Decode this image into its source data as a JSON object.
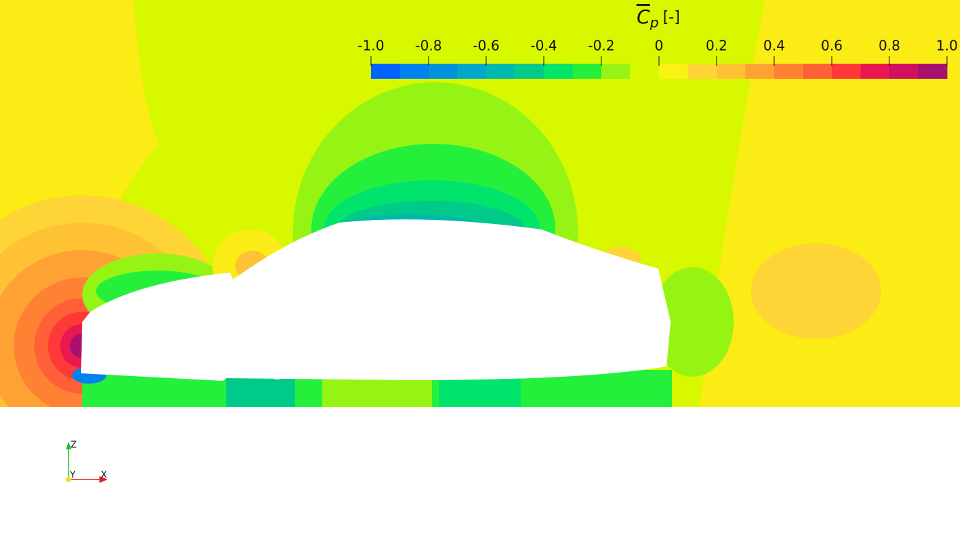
{
  "colorbar": {
    "symbol": "C",
    "subscript": "p",
    "unit": "[-]",
    "range": [
      -1,
      1
    ],
    "ticks": [
      {
        "value": -1,
        "label": "-1.0"
      },
      -0.8,
      -0.6,
      -0.4,
      -0.2,
      0,
      0.2,
      0.4,
      0.6,
      0.8,
      {
        "value": 1,
        "label": "1.0"
      }
    ],
    "colors": [
      "#0062ff",
      "#0082ee",
      "#0092dc",
      "#00a8cc",
      "#00b8ac",
      "#00ca8a",
      "#00e46c",
      "#24f03c",
      "#96f414",
      "#d8f800",
      "#faf214",
      "#ffd436",
      "#ffc234",
      "#ffa234",
      "#ff8234",
      "#ff6038",
      "#ff3838",
      "#e81850",
      "#d01060",
      "#a81070"
    ]
  },
  "axes": {
    "z": "Z",
    "y": "Y",
    "x": "X"
  }
}
